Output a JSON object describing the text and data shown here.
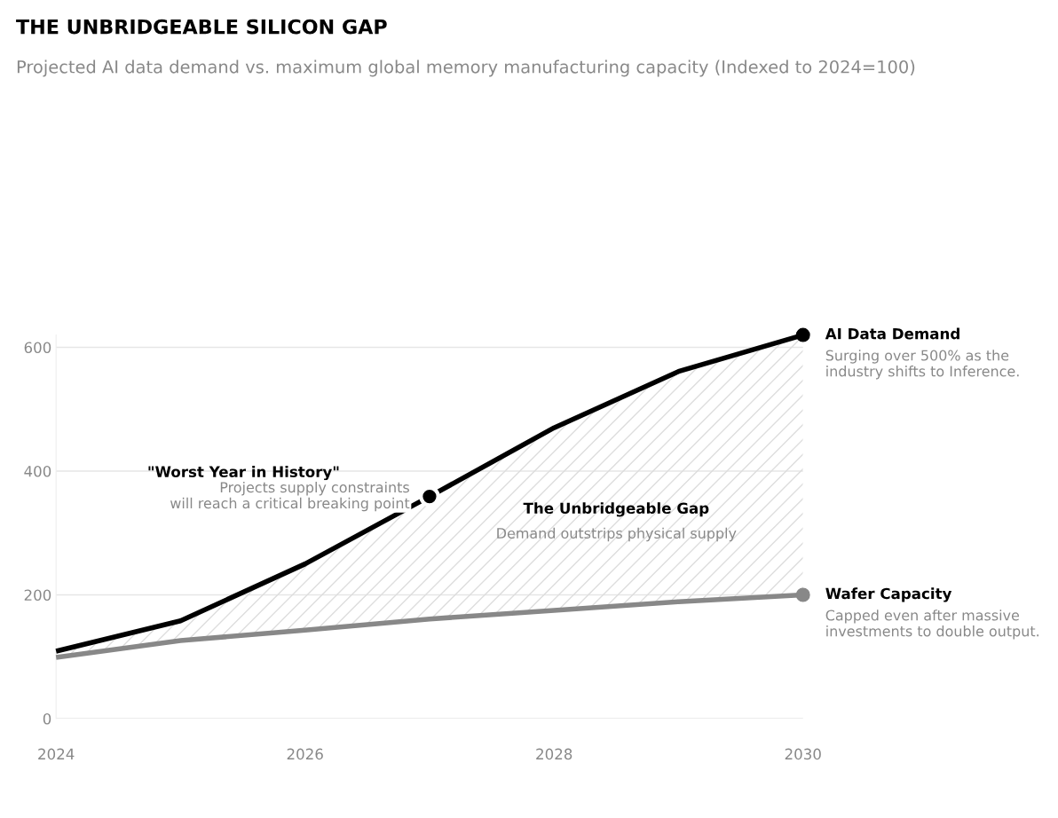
{
  "chart_data": {
    "type": "line",
    "title": "THE UNBRIDGEABLE SILICON GAP",
    "subtitle": "Projected AI data demand vs. maximum global memory manufacturing capacity (Indexed to 2024=100)",
    "x": [
      2024,
      2025,
      2026,
      2027,
      2028,
      2029,
      2030
    ],
    "series": [
      {
        "name": "AI Data Demand",
        "color": "#000000",
        "values": [
          109,
          158,
          250,
          359,
          470,
          561,
          620
        ],
        "lower": [
          99,
          126,
          143,
          161,
          175,
          189,
          200
        ],
        "upper": [
          109,
          158,
          250,
          359,
          470,
          561,
          620
        ]
      },
      {
        "name": "Wafer Capacity",
        "color": "#888888",
        "values": [
          99,
          126,
          143,
          161,
          175,
          189,
          200
        ]
      }
    ],
    "xlim": [
      2024,
      2030
    ],
    "xticks": [
      2024,
      2026,
      2028,
      2030
    ],
    "ylim": [
      0,
      620
    ],
    "yticks": [
      0,
      200,
      400,
      600
    ],
    "grid": "y",
    "legend": "right",
    "marker": "none",
    "line_style": "solid",
    "annotations": [
      "\"Worst Year in History\"",
      {
        "text": "Projects supply constraints\nwill reach a critical breaking point",
        "x": 2027,
        "y": 359
      },
      "The Unbridgeable Gap",
      "Demand outstrips physical supply",
      "Surging over 500% as the\nindustry shifts to Inference.",
      "Capped even after massive\ninvestments to double output."
    ]
  }
}
